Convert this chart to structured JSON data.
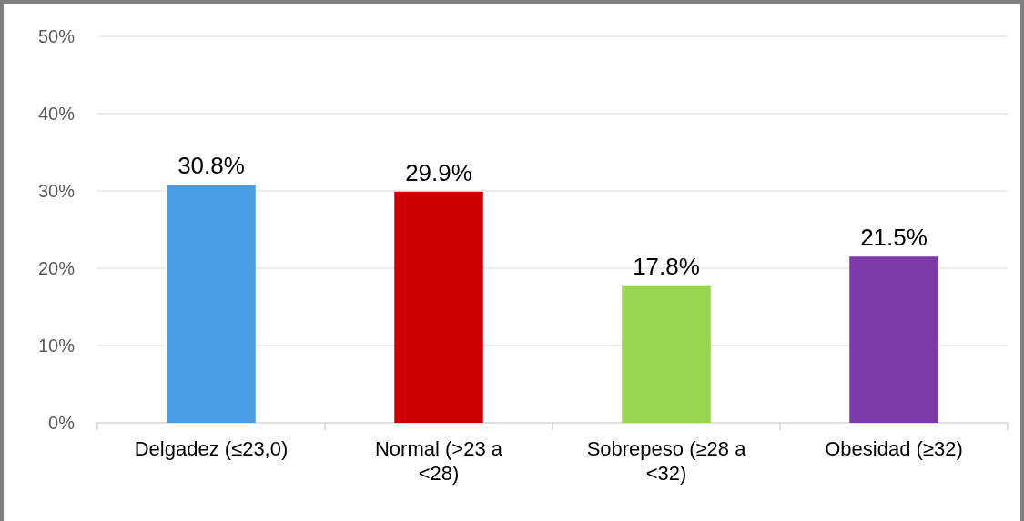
{
  "chart_data": {
    "type": "bar",
    "categories": [
      "Delgadez (≤23,0)",
      "Normal (>23 a <28)",
      "Sobrepeso (≥28 a <32)",
      "Obesidad (≥32)"
    ],
    "values": [
      30.8,
      29.9,
      17.8,
      21.5
    ],
    "colors": [
      "#4a9de2",
      "#cc0000",
      "#99d552",
      "#7b3aa8"
    ],
    "value_labels": [
      "30.8%",
      "29.9%",
      "17.8%",
      "21.5%"
    ],
    "ylim": [
      0,
      50
    ],
    "yticks": [
      {
        "value": 0,
        "label": "0%"
      },
      {
        "value": 10,
        "label": "10%"
      },
      {
        "value": 20,
        "label": "20%"
      },
      {
        "value": 30,
        "label": "30%"
      },
      {
        "value": 40,
        "label": "40%"
      },
      {
        "value": 50,
        "label": "50%"
      }
    ],
    "grid": "y"
  }
}
